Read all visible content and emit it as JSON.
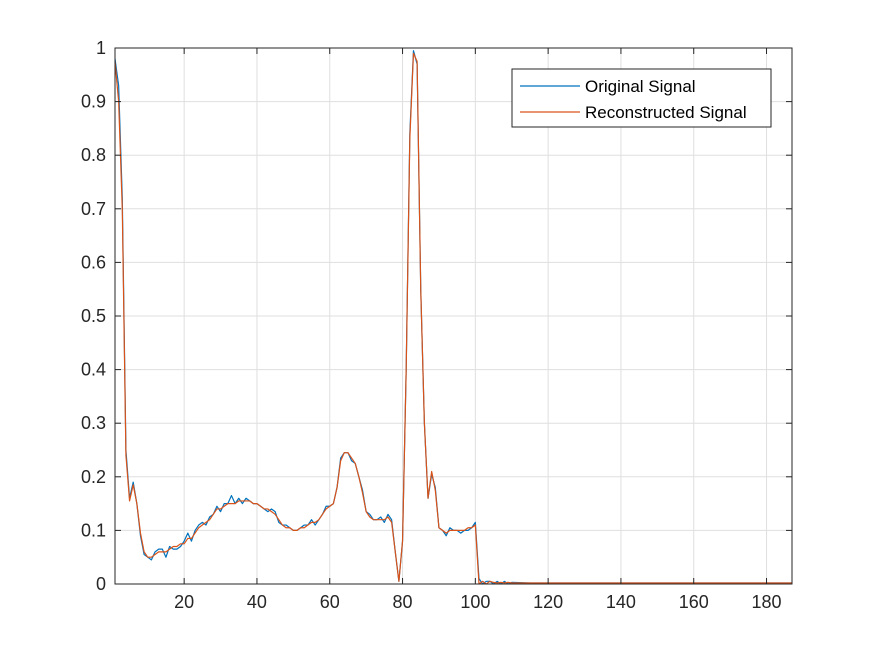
{
  "chart_data": {
    "type": "line",
    "title": "",
    "xlabel": "",
    "ylabel": "",
    "xlim": [
      1,
      187
    ],
    "ylim": [
      0,
      1
    ],
    "xticks": [
      20,
      40,
      60,
      80,
      100,
      120,
      140,
      160,
      180
    ],
    "yticks": [
      0,
      0.1,
      0.2,
      0.3,
      0.4,
      0.5,
      0.6,
      0.7,
      0.8,
      0.9,
      1
    ],
    "grid": true,
    "legend": {
      "position": "top-right",
      "entries": [
        "Original Signal",
        "Reconstructed Signal"
      ]
    },
    "colors": {
      "original": "#0072BD",
      "reconstructed": "#D95319",
      "grid": "#dfdfdf",
      "axes": "#262626"
    },
    "series": [
      {
        "name": "Original Signal",
        "x": [
          1,
          2,
          3,
          4,
          5,
          6,
          7,
          8,
          9,
          10,
          11,
          12,
          13,
          14,
          15,
          16,
          17,
          18,
          19,
          20,
          21,
          22,
          23,
          24,
          25,
          26,
          27,
          28,
          29,
          30,
          31,
          32,
          33,
          34,
          35,
          36,
          37,
          38,
          39,
          40,
          41,
          42,
          43,
          44,
          45,
          46,
          47,
          48,
          49,
          50,
          51,
          52,
          53,
          54,
          55,
          56,
          57,
          58,
          59,
          60,
          61,
          62,
          63,
          64,
          65,
          66,
          67,
          68,
          69,
          70,
          71,
          72,
          73,
          74,
          75,
          76,
          77,
          78,
          79,
          80,
          81,
          82,
          83,
          84,
          85,
          86,
          87,
          88,
          89,
          90,
          91,
          92,
          93,
          94,
          95,
          96,
          97,
          98,
          99,
          100,
          101,
          102,
          103,
          104,
          105,
          106,
          107,
          108,
          109,
          110,
          115,
          120,
          125,
          130,
          140,
          150,
          160,
          170,
          180,
          187
        ],
        "y": [
          0.98,
          0.93,
          0.72,
          0.25,
          0.16,
          0.19,
          0.15,
          0.09,
          0.055,
          0.05,
          0.045,
          0.06,
          0.065,
          0.065,
          0.05,
          0.07,
          0.065,
          0.065,
          0.07,
          0.08,
          0.095,
          0.08,
          0.1,
          0.11,
          0.115,
          0.11,
          0.125,
          0.13,
          0.145,
          0.135,
          0.15,
          0.15,
          0.165,
          0.15,
          0.16,
          0.15,
          0.16,
          0.155,
          0.15,
          0.15,
          0.145,
          0.14,
          0.135,
          0.14,
          0.135,
          0.115,
          0.11,
          0.11,
          0.105,
          0.1,
          0.1,
          0.105,
          0.11,
          0.11,
          0.12,
          0.11,
          0.12,
          0.13,
          0.145,
          0.145,
          0.15,
          0.18,
          0.235,
          0.245,
          0.245,
          0.23,
          0.225,
          0.2,
          0.175,
          0.135,
          0.13,
          0.12,
          0.12,
          0.125,
          0.115,
          0.13,
          0.12,
          0.06,
          0.005,
          0.08,
          0.4,
          0.84,
          0.995,
          0.97,
          0.55,
          0.3,
          0.16,
          0.205,
          0.18,
          0.105,
          0.1,
          0.09,
          0.105,
          0.1,
          0.1,
          0.095,
          0.1,
          0.1,
          0.105,
          0.115,
          0.01,
          0.0,
          0.005,
          0.005,
          0.0,
          0.005,
          0.0,
          0.005,
          0.0,
          0.003,
          0.002,
          0.002,
          0.002,
          0.002,
          0.002,
          0.002,
          0.002,
          0.002,
          0.002,
          0.002
        ]
      },
      {
        "name": "Reconstructed Signal",
        "x": [
          1,
          2,
          3,
          4,
          5,
          6,
          7,
          8,
          9,
          10,
          11,
          12,
          13,
          14,
          15,
          16,
          17,
          18,
          19,
          20,
          21,
          22,
          23,
          24,
          25,
          26,
          27,
          28,
          29,
          30,
          31,
          32,
          33,
          34,
          35,
          36,
          37,
          38,
          39,
          40,
          41,
          42,
          43,
          44,
          45,
          46,
          47,
          48,
          49,
          50,
          51,
          52,
          53,
          54,
          55,
          56,
          57,
          58,
          59,
          60,
          61,
          62,
          63,
          64,
          65,
          66,
          67,
          68,
          69,
          70,
          71,
          72,
          73,
          74,
          75,
          76,
          77,
          78,
          79,
          80,
          81,
          82,
          83,
          84,
          85,
          86,
          87,
          88,
          89,
          90,
          91,
          92,
          93,
          94,
          95,
          96,
          97,
          98,
          99,
          100,
          101,
          102,
          103,
          104,
          105,
          106,
          107,
          108,
          109,
          110,
          115,
          120,
          125,
          130,
          140,
          150,
          160,
          170,
          180,
          187
        ],
        "y": [
          0.975,
          0.9,
          0.7,
          0.24,
          0.155,
          0.185,
          0.15,
          0.095,
          0.06,
          0.05,
          0.05,
          0.055,
          0.06,
          0.06,
          0.06,
          0.065,
          0.07,
          0.07,
          0.075,
          0.075,
          0.085,
          0.085,
          0.095,
          0.105,
          0.11,
          0.115,
          0.12,
          0.13,
          0.14,
          0.14,
          0.145,
          0.15,
          0.15,
          0.15,
          0.155,
          0.155,
          0.155,
          0.155,
          0.15,
          0.15,
          0.145,
          0.14,
          0.14,
          0.135,
          0.13,
          0.12,
          0.11,
          0.105,
          0.105,
          0.1,
          0.1,
          0.105,
          0.105,
          0.11,
          0.115,
          0.115,
          0.12,
          0.13,
          0.14,
          0.145,
          0.15,
          0.18,
          0.23,
          0.245,
          0.245,
          0.235,
          0.225,
          0.2,
          0.17,
          0.135,
          0.125,
          0.12,
          0.12,
          0.12,
          0.12,
          0.125,
          0.115,
          0.06,
          0.005,
          0.08,
          0.4,
          0.83,
          0.99,
          0.975,
          0.55,
          0.3,
          0.16,
          0.21,
          0.175,
          0.105,
          0.1,
          0.095,
          0.1,
          0.1,
          0.1,
          0.1,
          0.1,
          0.105,
          0.105,
          0.11,
          0.0,
          0.005,
          0.0,
          0.005,
          0.003,
          0.002,
          0.003,
          0.002,
          0.003,
          0.002,
          0.002,
          0.002,
          0.002,
          0.002,
          0.002,
          0.002,
          0.002,
          0.002,
          0.002,
          0.002
        ]
      }
    ]
  }
}
